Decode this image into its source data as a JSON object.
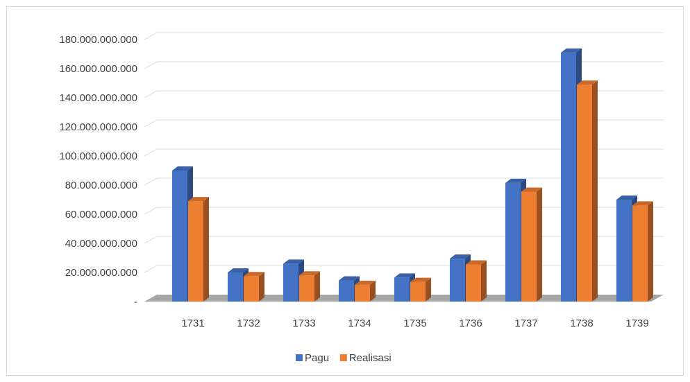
{
  "chart_data": {
    "type": "bar",
    "categories": [
      "1731",
      "1732",
      "1733",
      "1734",
      "1735",
      "1736",
      "1737",
      "1738",
      "1739"
    ],
    "series": [
      {
        "name": "Pagu",
        "color": "#4472c4",
        "values": [
          90000000000,
          20000000000,
          26000000000,
          14500000000,
          16500000000,
          29500000000,
          81500000000,
          171000000000,
          70000000000
        ]
      },
      {
        "name": "Realisasi",
        "color": "#ed7d31",
        "values": [
          69000000000,
          17500000000,
          18000000000,
          11500000000,
          13500000000,
          25500000000,
          75500000000,
          149000000000,
          66000000000
        ]
      }
    ],
    "ylim": [
      0,
      180000000000
    ],
    "ytick_labels": [
      "-",
      "20.000.000.000",
      "40.000.000.000",
      "60.000.000.000",
      "80.000.000.000",
      "100.000.000.000",
      "120.000.000.000",
      "140.000.000.000",
      "160.000.000.000",
      "180.000.000.000"
    ],
    "grid": true,
    "legend_position": "bottom",
    "style": "3d-clustered-column"
  }
}
